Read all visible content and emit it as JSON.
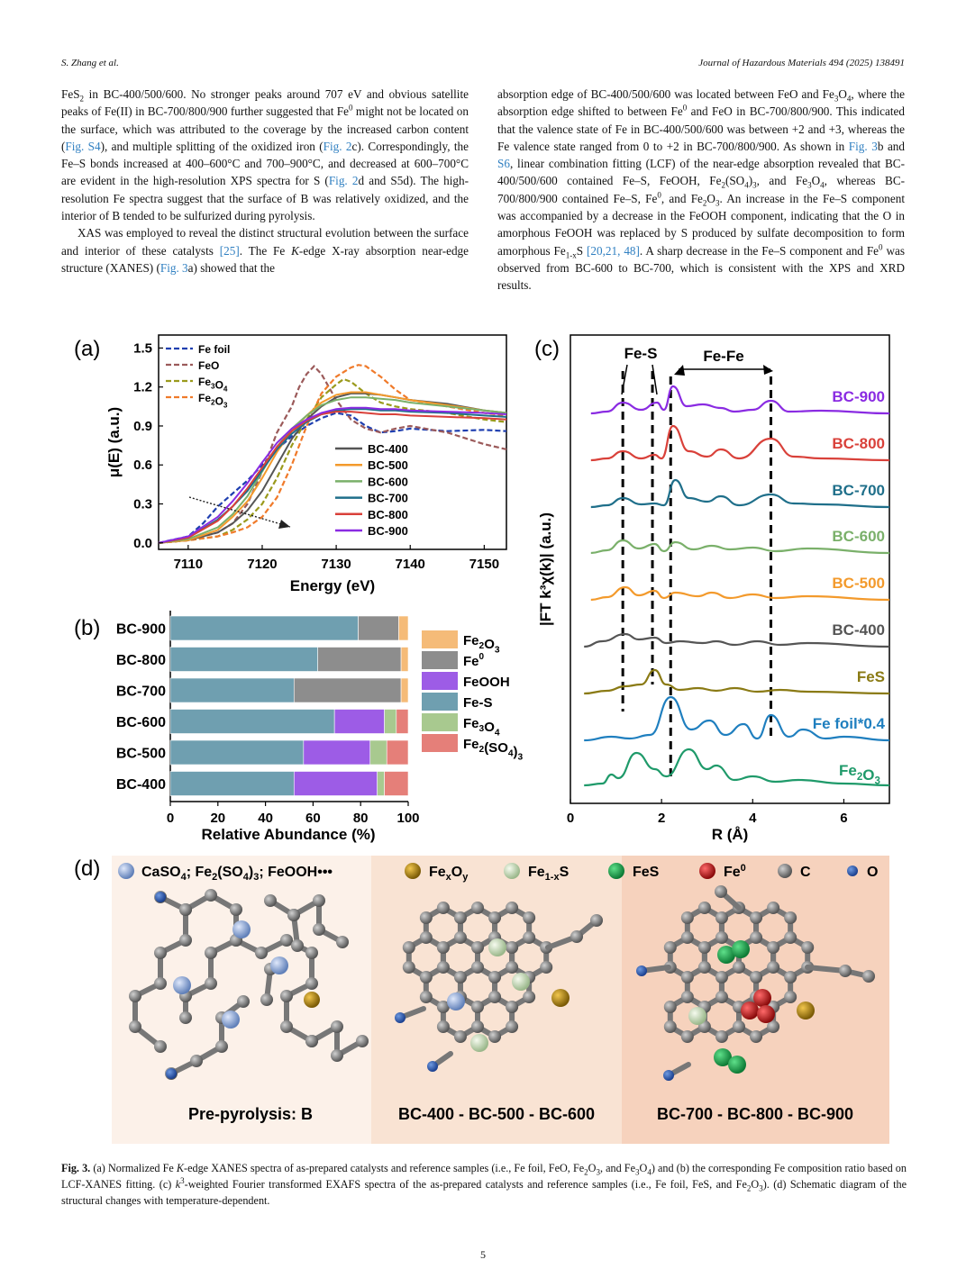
{
  "header": {
    "left": "S. Zhang et al.",
    "right": "Journal of Hazardous Materials 494 (2025) 138491"
  },
  "left_col": {
    "p1": {
      "a": "FeS",
      "s1": "2",
      "b": " in BC-400/500/600. No stronger peaks around 707 eV and obvious satellite peaks of Fe(II) in BC-700/800/900 further suggested that Fe",
      "s2": "0",
      "c": " might not be located on the surface, which was attributed to the coverage by the increased carbon content (",
      "l1": "Fig. S4",
      "d": "), and multiple splitting of the oxidized iron (",
      "l2": "Fig. 2",
      "e": "c). Correspondingly, the Fe–S bonds increased at 400–600°C and 700–900°C, and decreased at 600–700°C are evident in the high-resolution XPS spectra for S (",
      "l3": "Fig. 2",
      "f": "d and S5d). The high-resolution Fe spectra suggest that the surface of B was relatively oxidized, and the interior of B tended to be sulfurized during pyrolysis."
    },
    "p2": {
      "a": "XAS was employed to reveal the distinct structural evolution between the surface and interior of these catalysts ",
      "l1": "[25]",
      "b": ". The Fe ",
      "k": "K",
      "c": "-edge X-ray absorption near-edge structure (XANES) (",
      "l2": "Fig. 3",
      "d": "a) showed that the"
    }
  },
  "right_col": {
    "a": "absorption edge of BC-400/500/600 was located between FeO and Fe",
    "s1": "3",
    "b": "O",
    "s2": "4",
    "c": ", where the absorption edge shifted to between Fe",
    "s3": "0",
    "d": " and FeO in BC-700/800/900. This indicated that the valence state of Fe in BC-400/500/600 was between +2 and +3, whereas the Fe valence state ranged from 0 to +2 in BC-700/800/900. As shown in ",
    "l1": "Fig. 3",
    "e": "b and ",
    "l2": "S6",
    "f": ", linear combination fitting (LCF) of the near-edge absorption revealed that BC-400/500/600 contained Fe–S, FeOOH, Fe",
    "s4": "2",
    "g": "(SO",
    "s5": "4",
    "h": ")",
    "s6": "3",
    "i": ", and Fe",
    "s7": "3",
    "j": "O",
    "s8": "4",
    "k": ", whereas BC-700/800/900 contained Fe–S, Fe",
    "s9": "0",
    "l": ", and Fe",
    "s10": "2",
    "m": "O",
    "s11": "3",
    "n": ". An increase in the Fe–S component was accompanied by a decrease in the FeOOH component, indicating that the O in amorphous FeOOH was replaced by S produced by sulfate decomposition to form amorphous Fe",
    "s12": "1-x",
    "o": "S ",
    "l3": "[20,21, 48]",
    "p": ". A sharp decrease in the Fe–S component and Fe",
    "s13": "0",
    "q": " was observed from BC-600 to BC-700, which is consistent with the XPS and XRD results."
  },
  "figure": {
    "panel_labels": [
      "(a)",
      "(b)",
      "(c)",
      "(d)"
    ],
    "d_legend": {
      "caso4": "CaSO",
      "fe2so43": "Fe",
      "feooh": "FeOOH•••",
      "fexoy": "Fe",
      "fe1xs": "Fe",
      "fes": "FeS",
      "fe0": "Fe",
      "c": "C",
      "o": "O"
    },
    "d_sections": [
      "Pre-pyrolysis: B",
      "BC-400 - BC-500 - BC-600",
      "BC-700 - BC-800 - BC-900"
    ],
    "c_annot": {
      "fes": "Fe-S",
      "fefe": "Fe-Fe"
    }
  },
  "chart_data": [
    {
      "type": "line",
      "panel": "a",
      "xlabel": "Energy (eV)",
      "ylabel": "μ(E) (a.u.)",
      "xlim": [
        7106,
        7153
      ],
      "ylim": [
        -0.05,
        1.6
      ],
      "xticks": [
        7110,
        7120,
        7130,
        7140,
        7150
      ],
      "yticks": [
        0.0,
        0.3,
        0.6,
        0.9,
        1.2,
        1.5
      ],
      "ytick_labels": [
        "0.0",
        "0.3",
        "0.6",
        "0.9",
        "1.2",
        "1.5"
      ],
      "reference_legend": [
        "Fe foil",
        "FeO",
        "Fe3O4",
        "Fe2O3"
      ],
      "series": [
        {
          "name": "Fe foil",
          "color": "#1f3fb0",
          "dashed": true,
          "x": [
            7106,
            7110,
            7112,
            7114,
            7116,
            7118,
            7120,
            7122,
            7124,
            7126,
            7128,
            7130,
            7132,
            7134,
            7136,
            7138,
            7140,
            7145,
            7150,
            7153
          ],
          "y": [
            0.0,
            0.05,
            0.15,
            0.28,
            0.38,
            0.48,
            0.6,
            0.72,
            0.82,
            0.9,
            0.96,
            1.0,
            0.98,
            0.9,
            0.85,
            0.86,
            0.88,
            0.86,
            0.87,
            0.86
          ]
        },
        {
          "name": "FeO",
          "color": "#9b5a5a",
          "dashed": true,
          "x": [
            7106,
            7110,
            7114,
            7116,
            7118,
            7120,
            7122,
            7124,
            7125,
            7126,
            7127,
            7128,
            7130,
            7132,
            7134,
            7136,
            7138,
            7140,
            7145,
            7150,
            7153
          ],
          "y": [
            0.0,
            0.02,
            0.08,
            0.15,
            0.3,
            0.55,
            0.85,
            1.05,
            1.2,
            1.3,
            1.36,
            1.3,
            1.1,
            0.95,
            0.88,
            0.85,
            0.88,
            0.9,
            0.85,
            0.76,
            0.72
          ]
        },
        {
          "name": "Fe3O4",
          "color": "#9a9a1c",
          "dashed": true,
          "x": [
            7106,
            7110,
            7114,
            7116,
            7118,
            7120,
            7122,
            7124,
            7126,
            7128,
            7130,
            7131,
            7132,
            7134,
            7136,
            7138,
            7140,
            7145,
            7150,
            7153
          ],
          "y": [
            0.0,
            0.02,
            0.05,
            0.1,
            0.18,
            0.3,
            0.5,
            0.75,
            0.95,
            1.12,
            1.22,
            1.26,
            1.24,
            1.15,
            1.08,
            1.05,
            1.03,
            1.0,
            0.95,
            0.93
          ]
        },
        {
          "name": "Fe2O3",
          "color": "#f07a2a",
          "dashed": true,
          "x": [
            7106,
            7110,
            7114,
            7116,
            7118,
            7120,
            7122,
            7124,
            7126,
            7128,
            7130,
            7132,
            7133,
            7134,
            7136,
            7138,
            7140,
            7145,
            7150,
            7153
          ],
          "y": [
            0.0,
            0.02,
            0.05,
            0.08,
            0.12,
            0.2,
            0.35,
            0.6,
            0.9,
            1.15,
            1.28,
            1.35,
            1.37,
            1.36,
            1.28,
            1.18,
            1.1,
            1.05,
            1.0,
            0.98
          ]
        },
        {
          "name": "BC-400",
          "color": "#555555",
          "x": [
            7106,
            7110,
            7114,
            7116,
            7118,
            7120,
            7122,
            7124,
            7126,
            7128,
            7130,
            7132,
            7134,
            7136,
            7138,
            7140,
            7145,
            7150,
            7153
          ],
          "y": [
            0.0,
            0.02,
            0.08,
            0.15,
            0.25,
            0.4,
            0.6,
            0.8,
            0.95,
            1.05,
            1.12,
            1.15,
            1.15,
            1.14,
            1.12,
            1.1,
            1.07,
            1.02,
            1.0
          ]
        },
        {
          "name": "BC-500",
          "color": "#f39a2c",
          "x": [
            7106,
            7110,
            7114,
            7116,
            7118,
            7120,
            7122,
            7124,
            7126,
            7128,
            7130,
            7132,
            7134,
            7136,
            7138,
            7140,
            7145,
            7150,
            7153
          ],
          "y": [
            0.0,
            0.02,
            0.1,
            0.2,
            0.32,
            0.5,
            0.7,
            0.86,
            0.98,
            1.08,
            1.14,
            1.16,
            1.16,
            1.14,
            1.12,
            1.1,
            1.06,
            1.02,
            1.0
          ]
        },
        {
          "name": "BC-600",
          "color": "#7ab06a",
          "x": [
            7106,
            7110,
            7114,
            7116,
            7118,
            7120,
            7122,
            7124,
            7126,
            7128,
            7130,
            7132,
            7134,
            7136,
            7138,
            7140,
            7145,
            7150,
            7153
          ],
          "y": [
            0.0,
            0.03,
            0.12,
            0.22,
            0.36,
            0.55,
            0.74,
            0.88,
            0.98,
            1.06,
            1.1,
            1.12,
            1.12,
            1.11,
            1.1,
            1.08,
            1.05,
            1.02,
            1.0
          ]
        },
        {
          "name": "BC-700",
          "color": "#1f6f8a",
          "x": [
            7106,
            7110,
            7114,
            7116,
            7118,
            7120,
            7122,
            7124,
            7126,
            7128,
            7130,
            7132,
            7134,
            7136,
            7138,
            7140,
            7145,
            7150,
            7153
          ],
          "y": [
            0.0,
            0.04,
            0.18,
            0.28,
            0.4,
            0.56,
            0.72,
            0.84,
            0.93,
            0.99,
            1.02,
            1.03,
            1.03,
            1.02,
            1.02,
            1.01,
            1.0,
            0.98,
            0.97
          ]
        },
        {
          "name": "BC-800",
          "color": "#d9413a",
          "x": [
            7106,
            7110,
            7114,
            7116,
            7118,
            7120,
            7122,
            7124,
            7126,
            7128,
            7130,
            7132,
            7134,
            7136,
            7138,
            7140,
            7145,
            7150,
            7153
          ],
          "y": [
            0.0,
            0.04,
            0.17,
            0.28,
            0.42,
            0.58,
            0.74,
            0.86,
            0.94,
            0.99,
            1.01,
            1.01,
            1.0,
            0.99,
            0.99,
            0.98,
            0.97,
            0.96,
            0.95
          ]
        },
        {
          "name": "BC-900",
          "color": "#8a2be2",
          "x": [
            7106,
            7110,
            7114,
            7116,
            7118,
            7120,
            7122,
            7124,
            7126,
            7128,
            7130,
            7132,
            7134,
            7136,
            7138,
            7140,
            7145,
            7150,
            7153
          ],
          "y": [
            0.0,
            0.05,
            0.2,
            0.32,
            0.46,
            0.62,
            0.77,
            0.88,
            0.95,
            1.0,
            1.03,
            1.04,
            1.04,
            1.03,
            1.03,
            1.02,
            1.01,
            1.0,
            0.99
          ]
        }
      ]
    },
    {
      "type": "bar",
      "panel": "b",
      "orientation": "horizontal",
      "stacked": true,
      "xlabel": "Relative Abundance (%)",
      "xlim": [
        0,
        100
      ],
      "xticks": [
        0,
        20,
        40,
        60,
        80,
        100
      ],
      "categories": [
        "BC-900",
        "BC-800",
        "BC-700",
        "BC-600",
        "BC-500",
        "BC-400"
      ],
      "legend": [
        "Fe2O3",
        "Fe0",
        "FeOOH",
        "Fe-S",
        "Fe3O4",
        "Fe2(SO4)3"
      ],
      "series": [
        {
          "name": "Fe-S",
          "color": "#6f9fb0",
          "values": [
            79,
            62,
            52,
            69,
            56,
            52
          ]
        },
        {
          "name": "Fe0",
          "color": "#8d8d8d",
          "values": [
            17,
            35,
            45,
            0,
            0,
            0
          ]
        },
        {
          "name": "FeOOH",
          "color": "#9d5ce6",
          "values": [
            0,
            0,
            0,
            21,
            28,
            35
          ]
        },
        {
          "name": "Fe3O4",
          "color": "#a8c98f",
          "values": [
            0,
            0,
            0,
            5,
            7,
            3
          ]
        },
        {
          "name": "Fe2(SO4)3",
          "color": "#e57f79",
          "values": [
            0,
            0,
            0,
            5,
            9,
            10
          ]
        },
        {
          "name": "Fe2O3",
          "color": "#f5bb78",
          "values": [
            4,
            3,
            3,
            0,
            0,
            0
          ]
        }
      ]
    },
    {
      "type": "line",
      "panel": "c",
      "xlabel": "R (Å)",
      "ylabel": "|FT k³χ(k)| (a.u.)",
      "xlim": [
        0,
        7
      ],
      "xticks": [
        0,
        2,
        4,
        6
      ],
      "dashed_markers_R": [
        1.15,
        1.8,
        2.2,
        4.4
      ],
      "series": [
        {
          "name": "BC-900",
          "color": "#8a2be2",
          "baseline": 9
        },
        {
          "name": "BC-800",
          "color": "#d9413a",
          "baseline": 8
        },
        {
          "name": "BC-700",
          "color": "#1f6f8a",
          "baseline": 7
        },
        {
          "name": "BC-600",
          "color": "#7ab06a",
          "baseline": 6
        },
        {
          "name": "BC-500",
          "color": "#f39a2c",
          "baseline": 5
        },
        {
          "name": "BC-400",
          "color": "#555555",
          "baseline": 4
        },
        {
          "name": "FeS",
          "color": "#8a7a14",
          "baseline": 3
        },
        {
          "name": "Fe foil*0.4",
          "color": "#1f7fbf",
          "baseline": 2
        },
        {
          "name": "Fe2O3",
          "color": "#1f9a6a",
          "baseline": 1
        }
      ]
    }
  ],
  "caption": {
    "label": "Fig. 3.",
    "a": " (a) Normalized Fe ",
    "k1": "K",
    "b": "-edge XANES spectra of as-prepared catalysts and reference samples (i.e., Fe foil, FeO, Fe",
    "s1": "2",
    "c": "O",
    "s2": "3",
    "d": ", and Fe",
    "s3": "3",
    "e": "O",
    "s4": "4",
    "f": ") and (b) the corresponding Fe composition ratio based on LCF-XANES fitting. (c) ",
    "k2": "k",
    "sup": "3",
    "g": "-weighted Fourier transformed EXAFS spectra of the as-prepared catalysts and reference samples (i.e., Fe foil, FeS, and Fe",
    "s5": "2",
    "h": "O",
    "s6": "3",
    "i": "). (d) Schematic diagram of the structural changes with temperature-dependent."
  },
  "page_number": "5"
}
